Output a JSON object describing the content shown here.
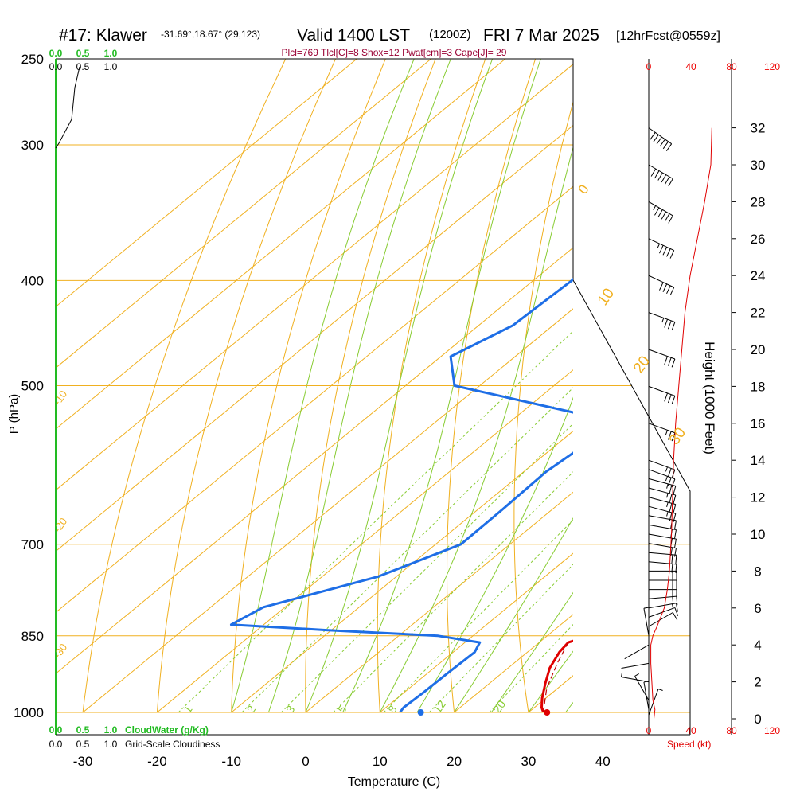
{
  "header": {
    "station": "#17: Klawer",
    "coords": "-31.69°,18.67° (29,123)",
    "valid": "Valid 1400 LST",
    "utc": "(1200Z)",
    "date": "FRI 7 Mar 2025",
    "forecast": "[12hrFcst@0559z]",
    "indices": "Plcl=769 Tlcl[C]=8 Shox=12 Pwat[cm]=3 Cape[J]= 29"
  },
  "axes": {
    "pressure_label": "P (hPa)",
    "temperature_label": "Temperature (C)",
    "height_label": "Height (1000 Feet)",
    "speed_label": "Speed (kt)",
    "cloudwater_label": "CloudWater (g/Kg)",
    "cloudiness_label": "Grid-Scale Cloudiness",
    "pressure_ticks": [
      "250",
      "300",
      "400",
      "500",
      "700",
      "850",
      "1000"
    ],
    "temperature_ticks": [
      "-30",
      "-20",
      "-10",
      "0",
      "10",
      "20",
      "30",
      "40"
    ],
    "height_ticks": [
      "0",
      "2",
      "4",
      "6",
      "8",
      "10",
      "12",
      "14",
      "16",
      "18",
      "20",
      "22",
      "24",
      "26",
      "28",
      "30",
      "32"
    ],
    "speed_ticks": [
      "0",
      "40",
      "80",
      "120"
    ],
    "cloud_ticks": [
      "0.0",
      "0.5",
      "1.0"
    ]
  },
  "chart_data": {
    "type": "line",
    "title": "#17: Klawer  Valid 1400 LST (1200Z) FRI 7 Mar 2025 [12hrFcst@0559z]",
    "xlabel": "Temperature (C)",
    "ylabel": "P (hPa)",
    "y2label": "Height (1000 Feet)",
    "xlim": [
      -30,
      40
    ],
    "ylim": [
      1000,
      250
    ],
    "y2lim": [
      0,
      32
    ],
    "yscale": "log",
    "skew": "skew-T",
    "grid": true,
    "series": [
      {
        "name": "",
        "color": "#e00000",
        "pressure": [
          1000,
          990,
          970,
          940,
          910,
          880,
          862,
          852,
          840,
          810,
          780,
          760,
          730,
          700,
          650,
          600,
          560,
          530,
          500,
          450,
          400,
          350,
          300,
          270
        ],
        "value": [
          32,
          31,
          29.5,
          27.5,
          25.6,
          24.3,
          23.9,
          25.4,
          25.9,
          26.1,
          25.3,
          24.8,
          22.9,
          20.1,
          16.3,
          11.7,
          7.5,
          3.9,
          0.7,
          -5.6,
          -12.7,
          -20.8,
          -31.4,
          -39.1
        ]
      },
      {
        "name": "",
        "color": "#1e6ee6",
        "pressure": [
          1000,
          990,
          960,
          920,
          880,
          862,
          850,
          840,
          830,
          800,
          750,
          700,
          650,
          600,
          560,
          530,
          500,
          470,
          440,
          400,
          360,
          345,
          325,
          300,
          270
        ],
        "value": [
          12.7,
          12.4,
          12.6,
          12.7,
          12.9,
          12.0,
          5.3,
          -10.4,
          -24.4,
          -22.9,
          -12.5,
          -6.6,
          -6.7,
          -7.0,
          -6.0,
          -12.5,
          -33.4,
          -38.7,
          -35.4,
          -34.8,
          -35.7,
          -34.2,
          -34.4,
          -38.3,
          -45.6
        ]
      },
      {
        "name": "",
        "color": "#c00000",
        "dashed": true,
        "pressure": [
          1000,
          950,
          900,
          862
        ],
        "value": [
          32,
          28.5,
          25.8,
          23.9
        ]
      }
    ],
    "surface_points": [
      {
        "pressure": 1000,
        "value": 32.5,
        "color": "#e00000"
      },
      {
        "pressure": 1000,
        "value": 15.5,
        "color": "#1e6ee6"
      }
    ],
    "isotherm_labels": [
      "0",
      "10",
      "20",
      "30",
      "-10",
      "-20",
      "-30"
    ],
    "mixing_ratio_labels": [
      "1",
      "2",
      "3",
      "5",
      "8",
      "12",
      "20"
    ],
    "wind_speed_profile": {
      "xlim": [
        0,
        120
      ],
      "unit": "kt",
      "height_kft": [
        0,
        0.5,
        1,
        2,
        3,
        4,
        4.5,
        5,
        6,
        7,
        8,
        9,
        10,
        12,
        14,
        16,
        18,
        20,
        22,
        24,
        26,
        28,
        30,
        32
      ],
      "speed": [
        5,
        6,
        4,
        3,
        2,
        2,
        4,
        8,
        15,
        18,
        20,
        21,
        22,
        23,
        24,
        26,
        29,
        32,
        35,
        40,
        47,
        54,
        60,
        61
      ]
    },
    "wind_barbs": {
      "unit": "kt",
      "height_kft": [
        0.2,
        0.5,
        1,
        2,
        3,
        4,
        4.5,
        5,
        5.5,
        6,
        6.5,
        7,
        7.5,
        8,
        8.5,
        9,
        9.5,
        10,
        10.5,
        11,
        11.5,
        12,
        12.5,
        13,
        13.5,
        14,
        16,
        18,
        20,
        22,
        24,
        26,
        28,
        30,
        32
      ],
      "speed": [
        5,
        6,
        4,
        3,
        2,
        2,
        4,
        8,
        12,
        15,
        17,
        18,
        19,
        20,
        20,
        21,
        21,
        22,
        22,
        22,
        23,
        23,
        23,
        24,
        24,
        24,
        26,
        29,
        32,
        35,
        40,
        47,
        54,
        60,
        61
      ],
      "direction": [
        200,
        170,
        150,
        100,
        80,
        60,
        170,
        240,
        250,
        260,
        265,
        270,
        270,
        270,
        275,
        275,
        280,
        280,
        280,
        280,
        285,
        285,
        285,
        285,
        290,
        290,
        290,
        290,
        290,
        290,
        295,
        295,
        300,
        300,
        305
      ]
    }
  }
}
